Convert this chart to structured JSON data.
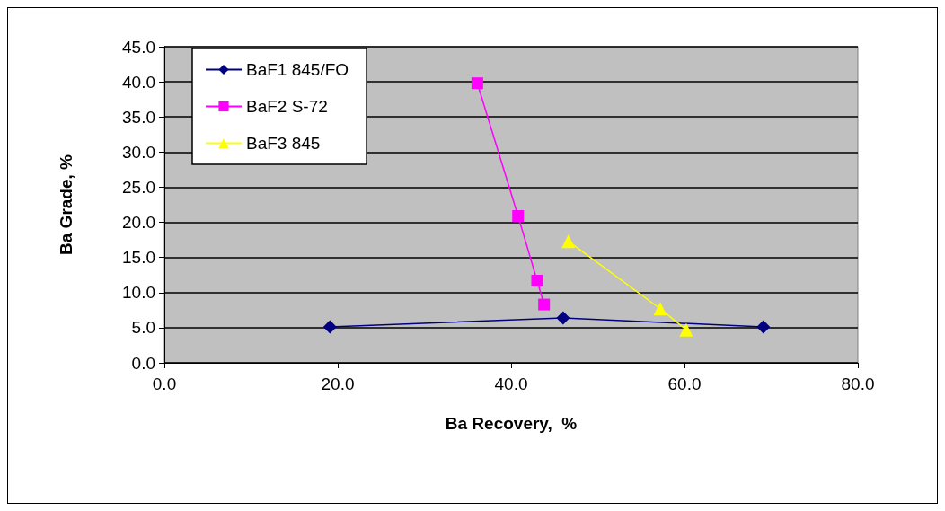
{
  "chart_data": {
    "type": "line",
    "xlabel": "Ba Recovery,  %",
    "ylabel": "Ba Grade, %",
    "xlim": [
      0,
      80
    ],
    "xticks": [
      {
        "value": 0,
        "label": "0.0"
      },
      {
        "value": 20,
        "label": "20.0"
      },
      {
        "value": 40,
        "label": "40.0"
      },
      {
        "value": 60,
        "label": "60.0"
      },
      {
        "value": 80,
        "label": "80.0"
      }
    ],
    "ylim": [
      0,
      45
    ],
    "yticks": [
      {
        "value": 0,
        "label": "0.0"
      },
      {
        "value": 5,
        "label": "5.0"
      },
      {
        "value": 10,
        "label": "10.0"
      },
      {
        "value": 15,
        "label": "15.0"
      },
      {
        "value": 20,
        "label": "20.0"
      },
      {
        "value": 25,
        "label": "25.0"
      },
      {
        "value": 30,
        "label": "30.0"
      },
      {
        "value": 35,
        "label": "35.0"
      },
      {
        "value": 40,
        "label": "40.0"
      },
      {
        "value": 45,
        "label": "45.0"
      }
    ],
    "grid": "y",
    "legend": "top left",
    "series": [
      {
        "name": "BaF1 845/FO",
        "color": "#000080",
        "marker": "diamond",
        "x": [
          19.1,
          46.0,
          69.1
        ],
        "values": [
          5.1,
          6.4,
          5.1
        ]
      },
      {
        "name": "BaF2 S-72",
        "color": "#ff00ff",
        "marker": "square",
        "x": [
          36.1,
          40.8,
          43.0,
          43.8
        ],
        "values": [
          39.8,
          20.9,
          11.7,
          8.3
        ]
      },
      {
        "name": "BaF3 845",
        "color": "#ffff00",
        "marker": "triangle",
        "x": [
          46.6,
          57.2,
          60.2
        ],
        "values": [
          17.3,
          7.7,
          4.7
        ]
      }
    ]
  }
}
